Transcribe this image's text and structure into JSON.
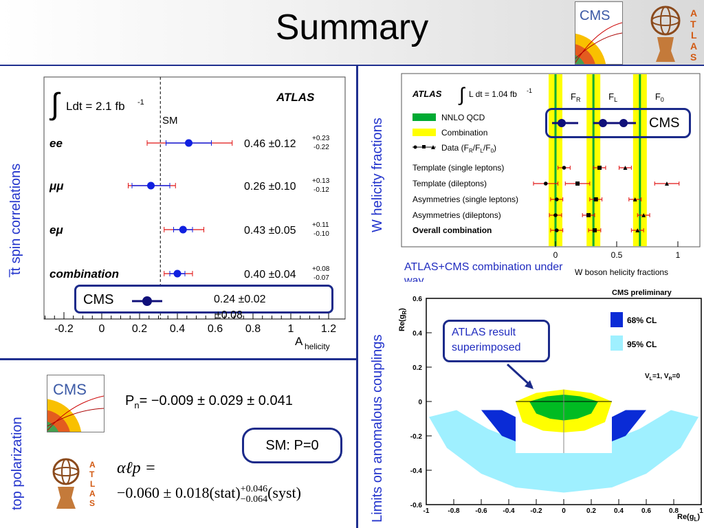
{
  "slide": {
    "title": "Summary",
    "logos": {
      "cms_text": "CMS",
      "atlas_letters": [
        "A",
        "T",
        "L",
        "A",
        "S"
      ]
    }
  },
  "spin": {
    "section_label": "t̅t spin correlations",
    "experiment": "ATLAS",
    "lumi_prefix": "Ldt = 2.1 fb",
    "lumi_exp": "-1",
    "sm_label": "SM",
    "xlabel": "A",
    "xlabel_sub": "helicity",
    "ticks": [
      "-0.2",
      "0",
      "0.2",
      "0.4",
      "0.6",
      "0.8",
      "1",
      "1.2"
    ],
    "rows": [
      {
        "label": "ee",
        "value": "0.46 ±0.12",
        "up": "+0.23",
        "down": "-0.22"
      },
      {
        "label": "μμ",
        "value": "0.26 ±0.10",
        "up": "+0.13",
        "down": "-0.12"
      },
      {
        "label": "eμ",
        "value": "0.43 ±0.05",
        "up": "+0.11",
        "down": "-0.10"
      },
      {
        "label": "combination",
        "value": "0.40 ±0.04",
        "up": "+0.08",
        "down": "-0.07"
      }
    ],
    "cms_label": "CMS",
    "cms_value_line1": "0.24 ±0.02",
    "cms_value_line2": "±0.08"
  },
  "chart_data": [
    {
      "type": "scatter",
      "title": "",
      "xlabel": "A helicity",
      "xlim": [
        -0.3,
        1.25
      ],
      "categories": [
        "ee",
        "μμ",
        "eμ",
        "combination",
        "CMS"
      ],
      "series": [
        {
          "name": "ATLAS",
          "values": [
            0.46,
            0.26,
            0.43,
            0.4
          ],
          "stat": [
            0.12,
            0.1,
            0.05,
            0.04
          ],
          "tot_up": [
            0.23,
            0.13,
            0.11,
            0.08
          ],
          "tot_down": [
            0.22,
            0.12,
            0.1,
            0.07
          ]
        },
        {
          "name": "CMS",
          "values": [
            0.24
          ],
          "stat": [
            0.02
          ],
          "syst": [
            0.08
          ]
        }
      ],
      "sm_value": 0.31
    },
    {
      "type": "scatter",
      "xlabel": "W boson helicity fractions",
      "xlim": [
        -0.15,
        1.1
      ],
      "categories": [
        "Template (single leptons)",
        "Template (dileptons)",
        "Asymmetries (single leptons)",
        "Asymmetries (dileptons)",
        "Overall combination"
      ],
      "series": [
        {
          "name": "F_R",
          "values": [
            0.07,
            -0.08,
            0.01,
            0.0,
            0.01
          ]
        },
        {
          "name": "F_L",
          "values": [
            0.36,
            0.18,
            0.33,
            0.27,
            0.32
          ]
        },
        {
          "name": "F_0",
          "values": [
            0.57,
            0.91,
            0.65,
            0.72,
            0.67
          ]
        }
      ],
      "band_centers": {
        "F_R": 0.0,
        "F_L": 0.31,
        "F_0": 0.69
      }
    },
    {
      "type": "area",
      "title": "CMS preliminary",
      "xlabel": "Re(g_L)",
      "ylabel": "Re(g_R)",
      "xlim": [
        -1,
        1
      ],
      "ylim": [
        -0.6,
        0.6
      ],
      "series": [
        {
          "name": "68% CL"
        },
        {
          "name": "95% CL"
        }
      ]
    }
  ],
  "whel": {
    "section_label": "W helicity fractions",
    "experiment": "ATLAS",
    "lumi": "L dt = 1.04 fb",
    "lumi_exp": "-1",
    "col_labels": [
      "F",
      "F",
      "F"
    ],
    "col_subs": [
      "R",
      "L",
      "0"
    ],
    "legend": [
      "NNLO QCD",
      "Combination",
      "Data (F"
    ],
    "legend_data_rest": "R/F",
    "rows": [
      "Template (single leptons)",
      "Template (dileptons)",
      "Asymmetries (single leptons)",
      "Asymmetries (dileptons)",
      "Overall combination"
    ],
    "ticks": [
      "0",
      "0.5",
      "1"
    ],
    "xlabel": "W boson helicity fractions",
    "cms_label": "CMS",
    "note": "ATLAS+CMS combination under way"
  },
  "coupling": {
    "section_label": "Limits on anomalous couplings",
    "title": "CMS preliminary",
    "legend": [
      "68% CL",
      "95% CL"
    ],
    "cond": "V",
    "yticks": [
      "0.6",
      "0.4",
      "0.2",
      "0",
      "-0.2",
      "-0.4",
      "-0.6"
    ],
    "xticks": [
      "-1",
      "-0.8",
      "-0.6",
      "-0.4",
      "-0.2",
      "0",
      "0.2",
      "0.4",
      "0.6",
      "0.8",
      "1"
    ],
    "xlabel": "Re(g",
    "ylabel": "Re(g",
    "callout": "ATLAS result superimposed"
  },
  "toppol": {
    "section_label": "top polarization",
    "cms_value_prefix": "P",
    "cms_value_sub": "n",
    "cms_value_rest": "= −0.009 ± 0.029 ± 0.041",
    "sm_label": "SM: P=0",
    "atlas_line1": "αℓp =",
    "atlas_line2_pre": "−0.060 ± 0.018(stat)",
    "atlas_up": "+0.046",
    "atlas_down": "−0.064",
    "atlas_line2_post": "(syst)"
  },
  "colors": {
    "accent": "#1f2f8f",
    "label_blue": "#2233cc",
    "green": "#00aa33",
    "yellow": "#ffff00",
    "cl68": "#0a2bd6",
    "cl95": "#9ff0ff"
  }
}
